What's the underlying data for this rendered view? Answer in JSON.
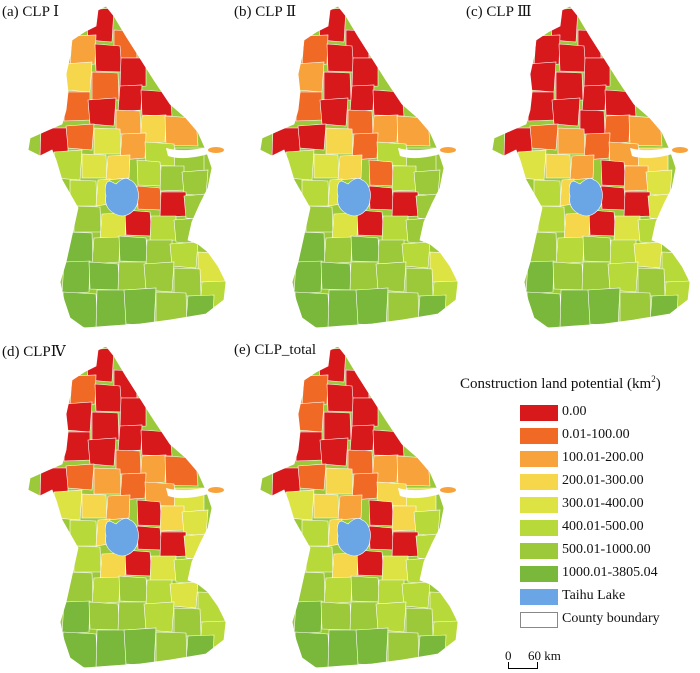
{
  "panels": [
    {
      "id": "a",
      "label": "(a) CLP Ⅰ"
    },
    {
      "id": "b",
      "label": "(b) CLP Ⅱ"
    },
    {
      "id": "c",
      "label": "(c) CLP Ⅲ"
    },
    {
      "id": "d",
      "label": "(d) CLPⅣ"
    },
    {
      "id": "e",
      "label": "(e) CLP_total"
    }
  ],
  "legend": {
    "title": "Construction land potential (km",
    "title_sup": "2",
    "title_end": ")",
    "items": [
      {
        "label": "0.00",
        "color": "#d7191c"
      },
      {
        "label": "0.01-100.00",
        "color": "#f06a25"
      },
      {
        "label": "100.01-200.00",
        "color": "#f7a23a"
      },
      {
        "label": "200.01-300.00",
        "color": "#f6d64a"
      },
      {
        "label": "300.01-400.00",
        "color": "#dde342"
      },
      {
        "label": "400.01-500.00",
        "color": "#b8d93a"
      },
      {
        "label": "500.01-1000.00",
        "color": "#9bc93a"
      },
      {
        "label": "1000.01-3805.04",
        "color": "#7ab83c"
      },
      {
        "label": "Taihu Lake",
        "color": "#6aa6e6"
      },
      {
        "label": "County boundary",
        "color": "#ffffff"
      }
    ]
  },
  "scalebar": {
    "zero": "0",
    "distance": "60 km"
  },
  "colors": {
    "lake": "#6aa6e6",
    "boundary": "#ffffff"
  }
}
